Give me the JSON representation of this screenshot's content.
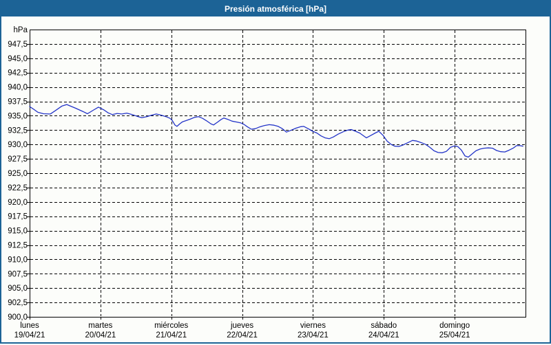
{
  "window": {
    "title": "Presión atmosférica [hPa]",
    "title_bar_color": "#1c6396",
    "border_color": "#1c6396",
    "background_color": "#fcfdfa"
  },
  "chart_data": {
    "type": "line",
    "title": "Presión atmosférica [hPa]",
    "unit_label": "hPa",
    "ylabel": "hPa",
    "xlabel": "",
    "ylim": [
      900,
      950
    ],
    "y_tick_step": 2.5,
    "y_tick_labels": [
      "947,5",
      "945,0",
      "942,5",
      "940,0",
      "937,5",
      "935,0",
      "932,5",
      "930,0",
      "927,5",
      "925,0",
      "922,5",
      "920,0",
      "917,5",
      "915,0",
      "912,5",
      "910,0",
      "907,5",
      "905,0",
      "902,5",
      "900,0"
    ],
    "x_days": [
      {
        "name": "lunes",
        "date": "19/04/21"
      },
      {
        "name": "martes",
        "date": "20/04/21"
      },
      {
        "name": "miércoles",
        "date": "21/04/21"
      },
      {
        "name": "jueves",
        "date": "22/04/21"
      },
      {
        "name": "viernes",
        "date": "23/04/21"
      },
      {
        "name": "sábado",
        "date": "24/04/21"
      },
      {
        "name": "domingo",
        "date": "25/04/21"
      }
    ],
    "x_span_hours": 168,
    "grid": "dashed",
    "legend": "none",
    "line_color": "#2233c8",
    "series": [
      {
        "name": "Presión atmosférica [hPa]",
        "points_format": [
          "hours_since_2021-04-19_00h",
          "hPa"
        ],
        "points": [
          [
            0,
            936.6
          ],
          [
            1.2,
            936.2
          ],
          [
            2.8,
            935.6
          ],
          [
            4.7,
            935.35
          ],
          [
            7,
            935.3
          ],
          [
            8.6,
            935.85
          ],
          [
            11,
            936.7
          ],
          [
            12.6,
            936.95
          ],
          [
            14.2,
            936.6
          ],
          [
            15.6,
            936.3
          ],
          [
            18,
            935.75
          ],
          [
            19.6,
            935.35
          ],
          [
            21.7,
            936
          ],
          [
            23.3,
            936.5
          ],
          [
            25.2,
            936
          ],
          [
            26.6,
            935.5
          ],
          [
            28,
            935.2
          ],
          [
            29.6,
            935.4
          ],
          [
            31.3,
            935.3
          ],
          [
            32.9,
            935.45
          ],
          [
            34.8,
            935.2
          ],
          [
            36.4,
            934.9
          ],
          [
            38,
            934.65
          ],
          [
            39.7,
            934.85
          ],
          [
            41.3,
            935.1
          ],
          [
            42.9,
            935.3
          ],
          [
            44.6,
            935.1
          ],
          [
            46.2,
            934.85
          ],
          [
            47.6,
            934.55
          ],
          [
            48.3,
            934.2
          ],
          [
            49.2,
            933.4
          ],
          [
            49.9,
            933.15
          ],
          [
            50.9,
            933.6
          ],
          [
            51.8,
            933.95
          ],
          [
            53,
            934.15
          ],
          [
            54.4,
            934.4
          ],
          [
            55.8,
            934.7
          ],
          [
            57.2,
            934.85
          ],
          [
            58.6,
            934.55
          ],
          [
            60,
            934.1
          ],
          [
            61.4,
            933.6
          ],
          [
            62.3,
            933.4
          ],
          [
            63.7,
            933.9
          ],
          [
            64.9,
            934.35
          ],
          [
            65.8,
            934.6
          ],
          [
            67.2,
            934.35
          ],
          [
            68.6,
            934.05
          ],
          [
            70.2,
            933.9
          ],
          [
            71.6,
            933.75
          ],
          [
            72.6,
            933.5
          ],
          [
            73.7,
            933.1
          ],
          [
            75.1,
            932.65
          ],
          [
            76.5,
            932.75
          ],
          [
            77.9,
            933.05
          ],
          [
            79.6,
            933.3
          ],
          [
            81.2,
            933.45
          ],
          [
            82.8,
            933.35
          ],
          [
            84.2,
            933.15
          ],
          [
            85.6,
            932.75
          ],
          [
            87,
            932.15
          ],
          [
            88.7,
            932.5
          ],
          [
            90.3,
            932.85
          ],
          [
            91.9,
            933.1
          ],
          [
            92.9,
            933.15
          ],
          [
            94.5,
            932.7
          ],
          [
            95.9,
            932.3
          ],
          [
            97.3,
            932
          ],
          [
            98.7,
            931.5
          ],
          [
            100.1,
            931.15
          ],
          [
            101.5,
            931
          ],
          [
            102.9,
            931.3
          ],
          [
            104.5,
            931.8
          ],
          [
            106.2,
            932.2
          ],
          [
            107.8,
            932.5
          ],
          [
            109,
            932.6
          ],
          [
            110.4,
            932.3
          ],
          [
            111.8,
            932
          ],
          [
            114.1,
            931.15
          ],
          [
            115.7,
            931.6
          ],
          [
            117.1,
            932
          ],
          [
            118.3,
            932.3
          ],
          [
            119.7,
            931.6
          ],
          [
            121.1,
            930.6
          ],
          [
            122.5,
            930
          ],
          [
            123.7,
            929.7
          ],
          [
            125.1,
            929.65
          ],
          [
            126.5,
            929.9
          ],
          [
            128.1,
            930.3
          ],
          [
            129.7,
            930.7
          ],
          [
            131.1,
            930.6
          ],
          [
            132.8,
            930.3
          ],
          [
            134.2,
            930
          ],
          [
            135.6,
            929.5
          ],
          [
            137,
            928.9
          ],
          [
            138.4,
            928.6
          ],
          [
            139.8,
            928.55
          ],
          [
            141.2,
            928.8
          ],
          [
            142.6,
            929.5
          ],
          [
            144,
            929.75
          ],
          [
            145.1,
            929.6
          ],
          [
            146.3,
            929
          ],
          [
            147.5,
            928
          ],
          [
            148.6,
            927.8
          ],
          [
            149.8,
            928.3
          ],
          [
            151.2,
            928.9
          ],
          [
            152.6,
            929.2
          ],
          [
            154,
            929.35
          ],
          [
            155.4,
            929.4
          ],
          [
            156.8,
            929.35
          ],
          [
            158.2,
            928.95
          ],
          [
            159.6,
            928.75
          ],
          [
            161,
            928.7
          ],
          [
            162.4,
            929
          ],
          [
            163.8,
            929.35
          ],
          [
            165,
            929.8
          ],
          [
            166.1,
            929.8
          ],
          [
            167.1,
            929.7
          ]
        ]
      }
    ]
  }
}
